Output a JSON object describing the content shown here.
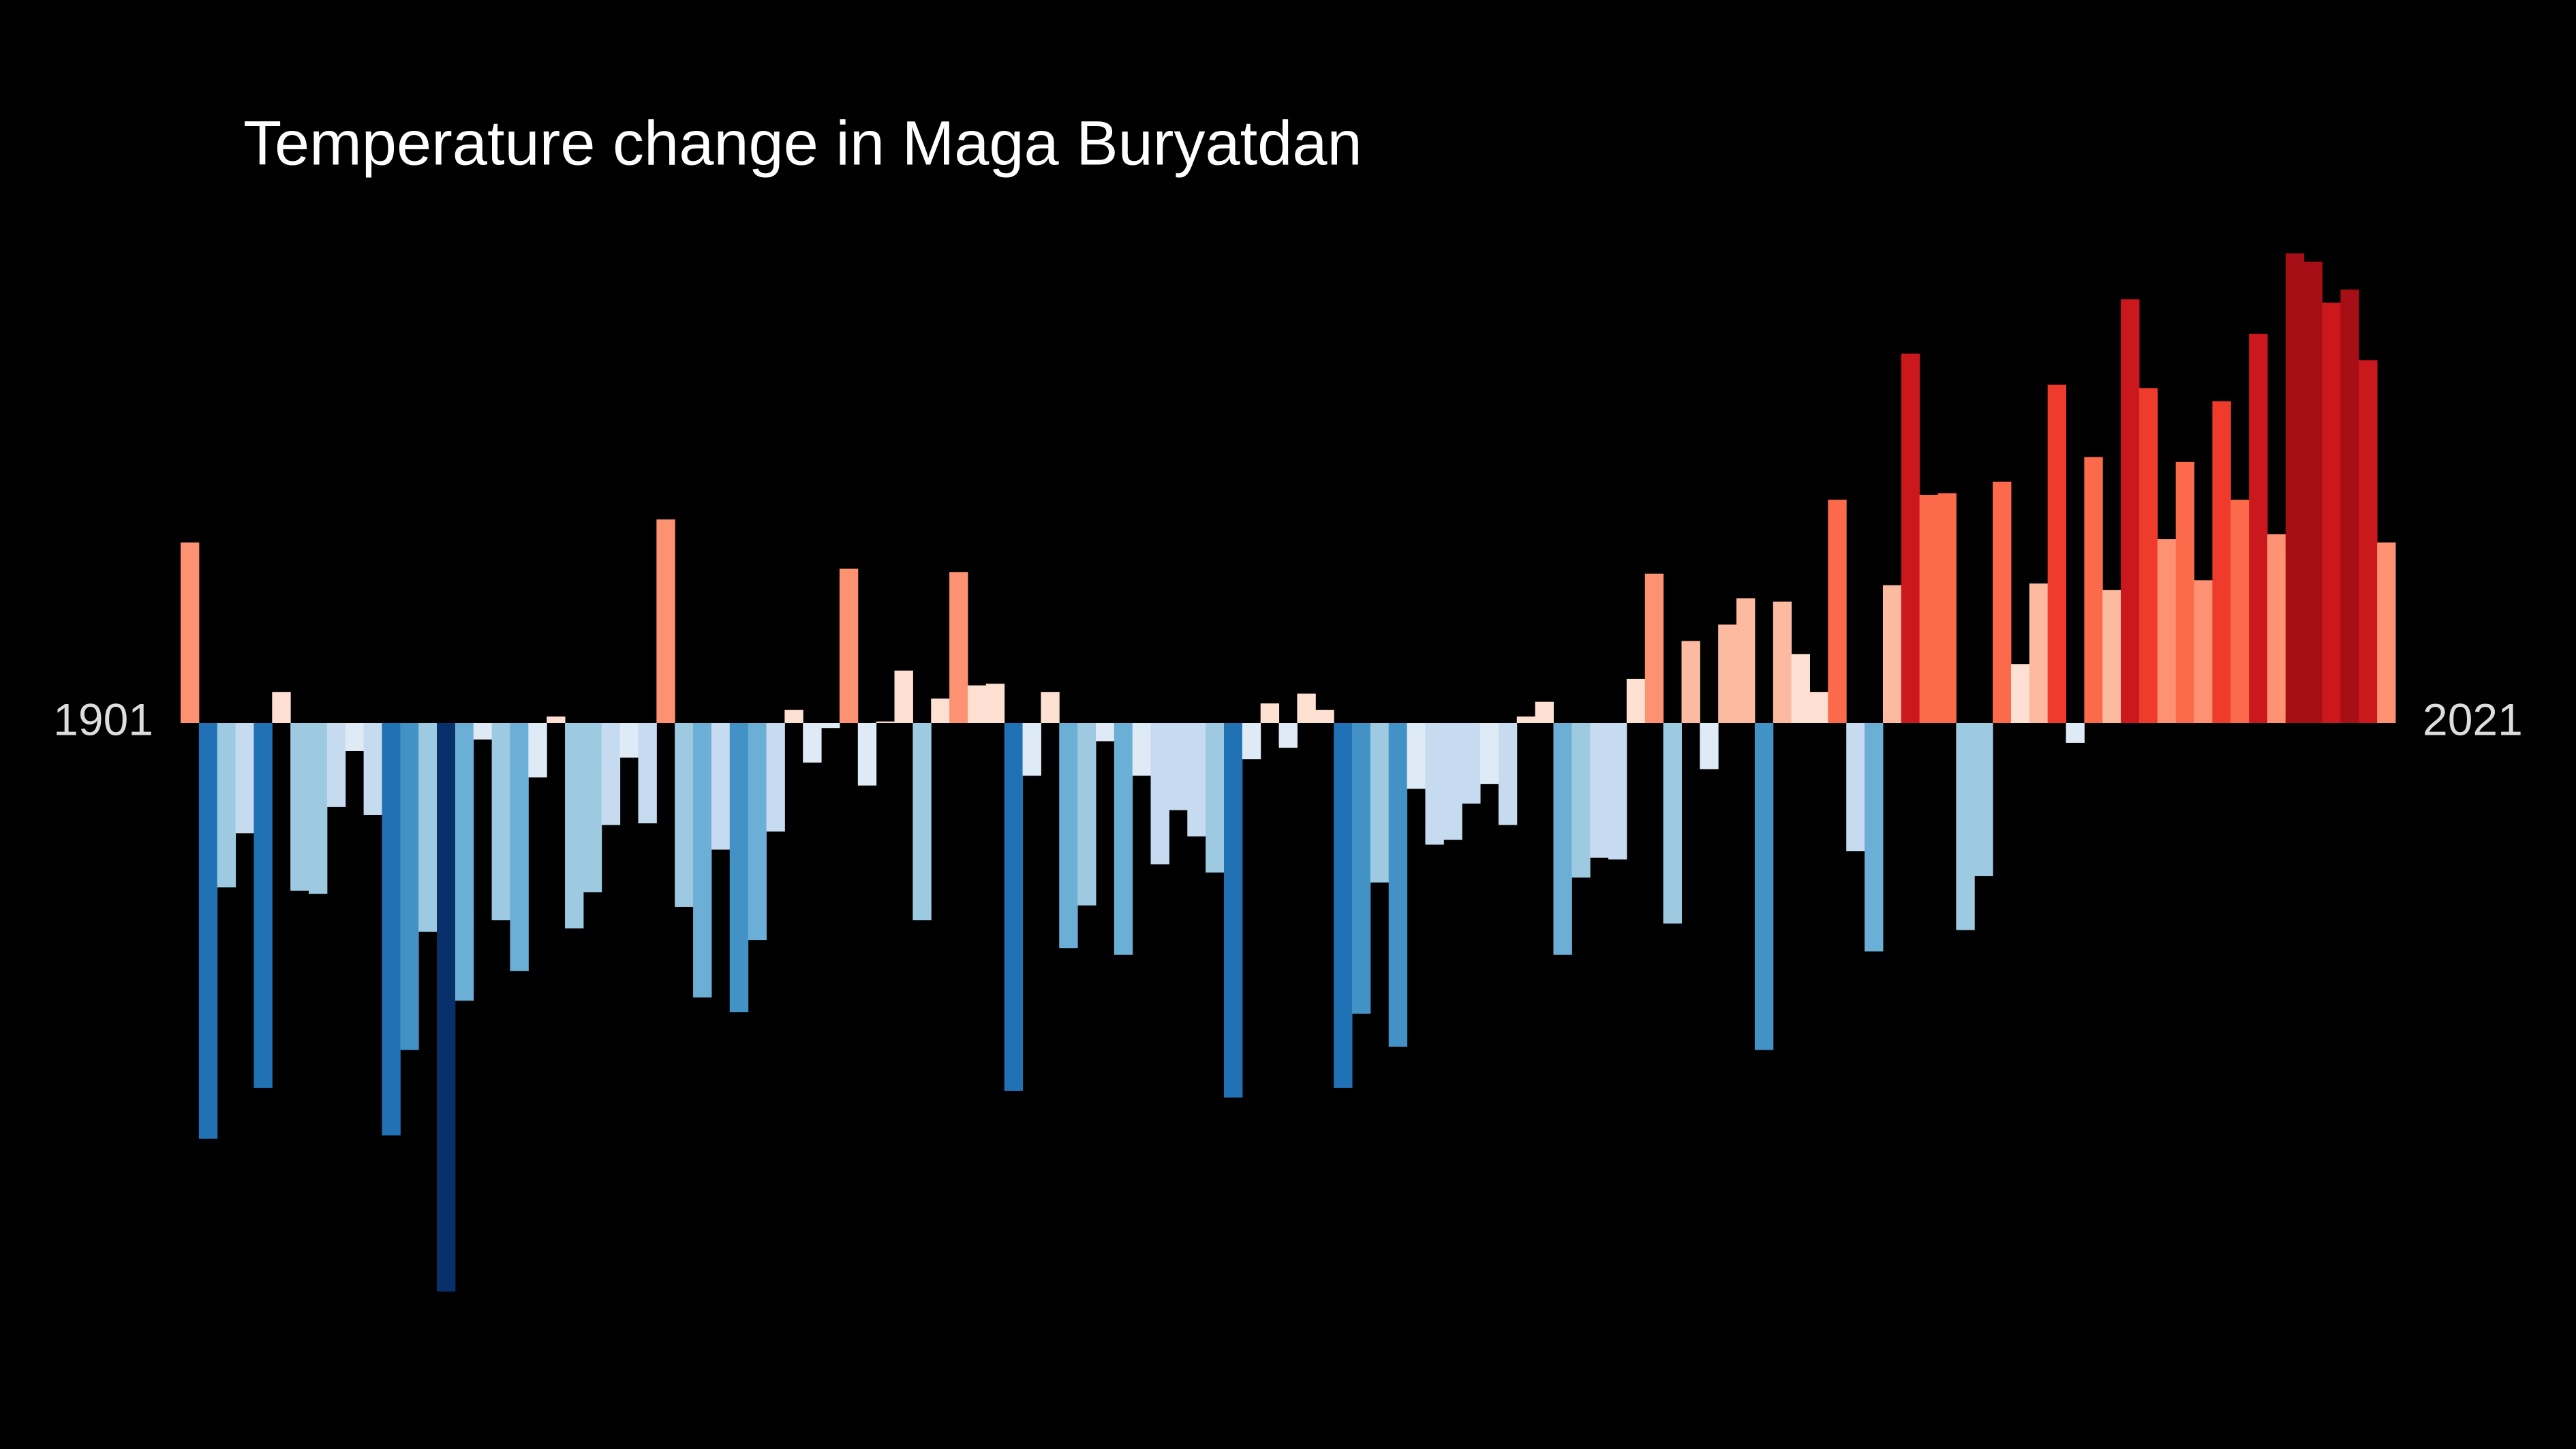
{
  "chart_data": {
    "type": "bar",
    "title": "Temperature change in Maga Buryatdan",
    "categories": [
      "1901",
      null,
      null,
      null,
      null,
      null,
      null,
      null,
      null,
      null,
      null,
      null,
      null,
      null,
      null,
      null,
      null,
      null,
      null,
      null,
      null,
      null,
      null,
      null,
      null,
      null,
      null,
      null,
      null,
      null,
      null,
      null,
      null,
      null,
      null,
      null,
      null,
      null,
      null,
      null,
      null,
      null,
      null,
      null,
      null,
      null,
      null,
      null,
      null,
      null,
      null,
      null,
      null,
      null,
      null,
      null,
      null,
      null,
      null,
      null,
      null,
      null,
      null,
      null,
      null,
      null,
      null,
      null,
      null,
      null,
      null,
      null,
      null,
      null,
      null,
      null,
      null,
      null,
      null,
      null,
      null,
      null,
      null,
      null,
      null,
      null,
      null,
      null,
      null,
      null,
      null,
      null,
      null,
      null,
      null,
      null,
      null,
      null,
      null,
      null,
      null,
      null,
      null,
      null,
      null,
      null,
      null,
      null,
      null,
      null,
      null,
      null,
      null,
      null,
      null,
      null,
      null,
      null,
      null,
      null,
      "2021"
    ],
    "values": [
      1.1,
      -2.53,
      -1.0,
      -0.67,
      -2.22,
      0.19,
      -1.02,
      -1.04,
      -0.51,
      -0.17,
      -0.56,
      -2.51,
      -1.99,
      -1.27,
      -3.46,
      -1.69,
      -0.1,
      -1.2,
      -1.51,
      -0.33,
      0.04,
      -1.25,
      -1.03,
      -0.62,
      -0.21,
      -0.61,
      1.24,
      -1.12,
      -1.67,
      -0.77,
      -1.76,
      -1.32,
      -0.66,
      0.08,
      -0.24,
      -0.03,
      0.94,
      -0.38,
      0.01,
      0.32,
      -1.2,
      0.15,
      0.92,
      0.23,
      0.24,
      -2.24,
      -0.32,
      0.19,
      -1.37,
      -1.11,
      -0.11,
      -1.41,
      -0.32,
      -0.86,
      -0.53,
      -0.69,
      -0.91,
      -2.28,
      -0.22,
      0.12,
      -0.15,
      0.18,
      0.08,
      -2.22,
      -1.77,
      -0.97,
      -1.97,
      -0.4,
      -0.74,
      -0.71,
      -0.49,
      -0.37,
      -0.62,
      0.04,
      0.13,
      -1.41,
      -0.94,
      -0.82,
      -0.83,
      0.27,
      0.91,
      -1.22,
      0.5,
      -0.28,
      0.6,
      0.76,
      -1.99,
      0.74,
      0.42,
      0.19,
      1.36,
      -0.78,
      -1.39,
      0.84,
      2.25,
      1.39,
      1.4,
      -1.26,
      -0.93,
      1.47,
      0.36,
      0.85,
      2.06,
      -0.12,
      1.62,
      0.81,
      2.58,
      2.04,
      1.12,
      1.59,
      0.87,
      1.96,
      1.36,
      2.37,
      1.15,
      2.86,
      2.81,
      2.56,
      2.64,
      2.21,
      1.1
    ],
    "colors": [
      "#08306b",
      "#08519c",
      "#2171b5",
      "#4292c6",
      "#6baed6",
      "#9ecae1",
      "#c6dbef",
      "#deebf7",
      "#fee0d2",
      "#fcbba1",
      "#fc9272",
      "#fb6a4a",
      "#ef3b2c",
      "#cb181d",
      "#a50f15",
      "#67000d"
    ]
  }
}
